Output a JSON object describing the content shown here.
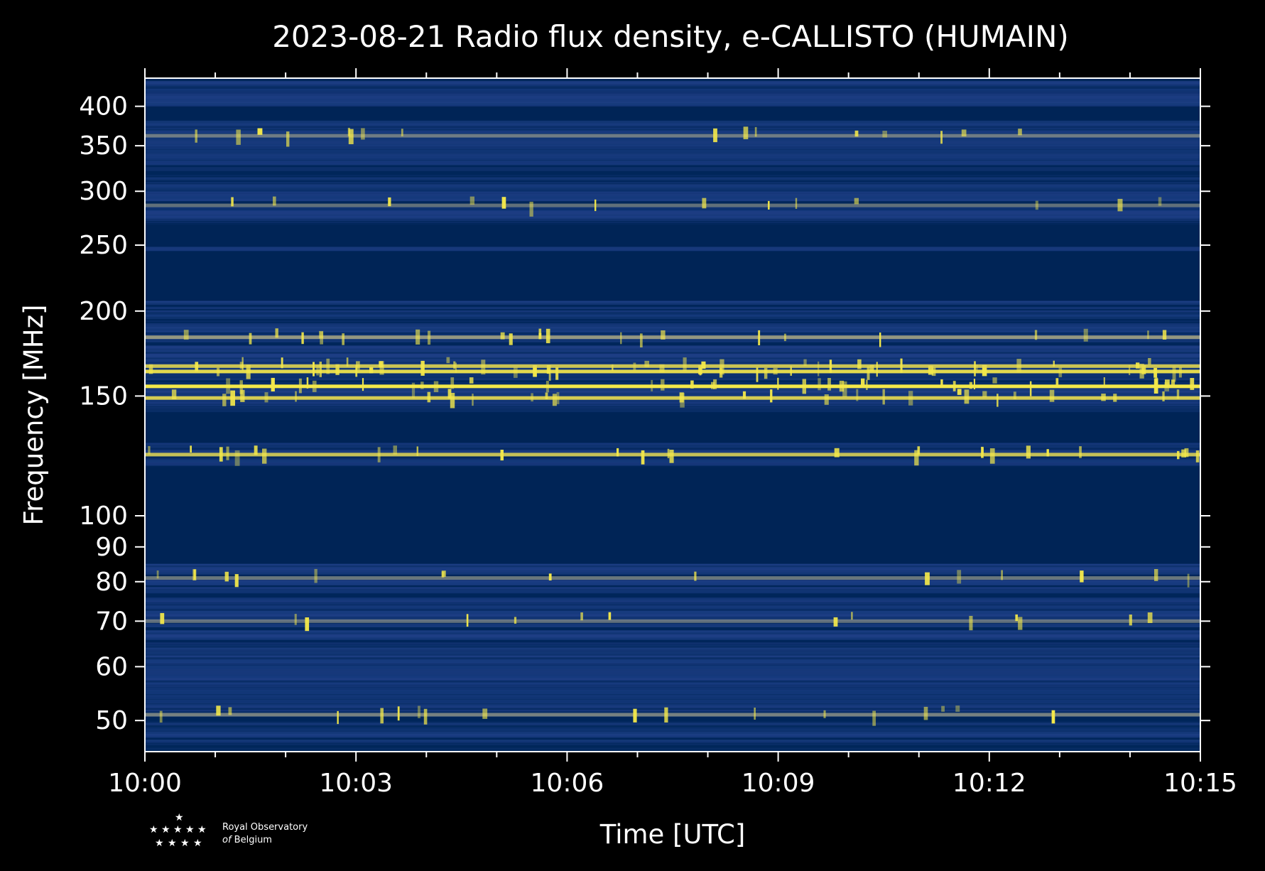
{
  "chart_data": {
    "type": "heatmap",
    "title": "2023-08-21 Radio flux density, e-CALLISTO (HUMAIN)",
    "xlabel": "Time [UTC]",
    "ylabel": "Frequency [MHz]",
    "x_ticks": [
      "10:00",
      "10:03",
      "10:06",
      "10:09",
      "10:12",
      "10:15"
    ],
    "x_range_minutes": [
      0,
      15
    ],
    "y_scale": "log",
    "y_ticks": [
      50,
      60,
      70,
      80,
      90,
      100,
      150,
      200,
      250,
      300,
      350,
      400
    ],
    "y_range": [
      45,
      440
    ],
    "colors": {
      "background": "#000000",
      "data_low": "#002456",
      "data_mid": "#1f3f86",
      "data_high": "#f3e84a"
    },
    "masked_bands_mhz": [
      [
        85,
        118
      ],
      [
        128,
        142
      ],
      [
        207,
        245
      ],
      [
        249,
        268
      ],
      [
        382,
        400
      ]
    ],
    "bright_bands_mhz": [
      {
        "center": 51,
        "intensity": 0.45
      },
      {
        "center": 70,
        "intensity": 0.35
      },
      {
        "center": 81,
        "intensity": 0.4
      },
      {
        "center": 123,
        "intensity": 0.7
      },
      {
        "center": 149,
        "intensity": 0.8
      },
      {
        "center": 155,
        "intensity": 1.0
      },
      {
        "center": 163,
        "intensity": 0.9
      },
      {
        "center": 166,
        "intensity": 0.75
      },
      {
        "center": 183,
        "intensity": 0.6
      },
      {
        "center": 286,
        "intensity": 0.35
      },
      {
        "center": 362,
        "intensity": 0.4
      }
    ]
  },
  "logo": {
    "line1": "Royal Observatory",
    "line2_italic": "of",
    "line2": "Belgium"
  }
}
